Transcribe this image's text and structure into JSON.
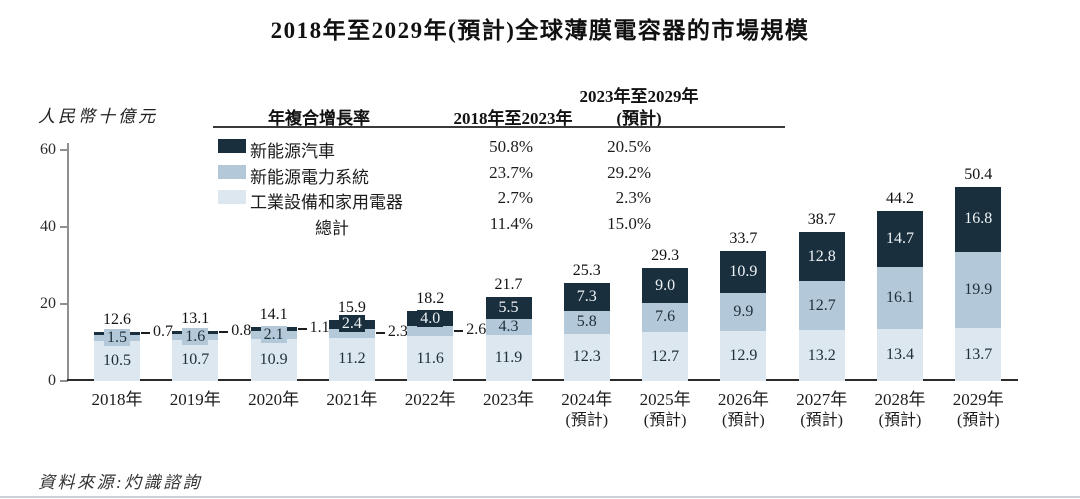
{
  "title": "2018年至2029年(預計)全球薄膜電容器的市場規模",
  "y_axis_label": "人民幣十億元",
  "source": "資料來源:灼識諮詢",
  "colors": {
    "dark": "#1a2f3e",
    "medium": "#b3c9da",
    "light": "#dce7ef",
    "axis": "#8f8f8f",
    "baseline": "#2b2b2b"
  },
  "cagr_table": {
    "col1_header": "年複合增長率",
    "col2_header": "2018年至2023年",
    "col3_header_line1": "2023年至2029年",
    "col3_header_line2": "(預計)",
    "rows": [
      {
        "label": "新能源汽車",
        "swatch": "dark",
        "cagr_2018_2023": "50.8%",
        "cagr_2023_2029": "20.5%"
      },
      {
        "label": "新能源電力系統",
        "swatch": "medium",
        "cagr_2018_2023": "23.7%",
        "cagr_2023_2029": "29.2%"
      },
      {
        "label": "工業設備和家用電器",
        "swatch": "light",
        "cagr_2018_2023": "2.7%",
        "cagr_2023_2029": "2.3%"
      },
      {
        "label": "總計",
        "swatch": null,
        "cagr_2018_2023": "11.4%",
        "cagr_2023_2029": "15.0%"
      }
    ]
  },
  "chart_data": {
    "type": "bar",
    "stacked": true,
    "title": "2018年至2029年(預計)全球薄膜電容器的市場規模",
    "xlabel": "",
    "ylabel": "人民幣十億元",
    "ylim": [
      0,
      60
    ],
    "yticks": [
      0,
      20,
      40,
      60
    ],
    "grid": false,
    "legend_position": "top-left-table",
    "categories": [
      "2018年",
      "2019年",
      "2020年",
      "2021年",
      "2022年",
      "2023年",
      "2024年",
      "2025年",
      "2026年",
      "2027年",
      "2028年",
      "2029年"
    ],
    "category_notes": [
      "",
      "",
      "",
      "",
      "",
      "",
      "(預計)",
      "(預計)",
      "(預計)",
      "(預計)",
      "(預計)",
      "(預計)"
    ],
    "series": [
      {
        "name": "工業設備和家用電器",
        "key": "light",
        "color": "#dce7ef",
        "values": [
          10.5,
          10.7,
          10.9,
          11.2,
          11.6,
          11.9,
          12.3,
          12.7,
          12.9,
          13.2,
          13.4,
          13.7
        ]
      },
      {
        "name": "新能源電力系統",
        "key": "medium",
        "color": "#b3c9da",
        "values": [
          1.5,
          1.6,
          2.1,
          2.3,
          2.6,
          4.3,
          5.8,
          7.6,
          9.9,
          12.7,
          16.1,
          19.9
        ]
      },
      {
        "name": "新能源汽車",
        "key": "dark",
        "color": "#1a2f3e",
        "values": [
          0.7,
          0.8,
          1.1,
          2.4,
          4.0,
          5.5,
          7.3,
          9.0,
          10.9,
          12.8,
          14.7,
          16.8
        ]
      }
    ],
    "totals": [
      12.6,
      13.1,
      14.1,
      15.9,
      18.2,
      21.7,
      25.3,
      29.3,
      33.7,
      38.7,
      44.2,
      50.4
    ],
    "outside_labels": [
      "dark",
      "dark",
      "dark",
      "medium",
      "medium",
      null,
      null,
      null,
      null,
      null,
      null,
      null
    ]
  }
}
